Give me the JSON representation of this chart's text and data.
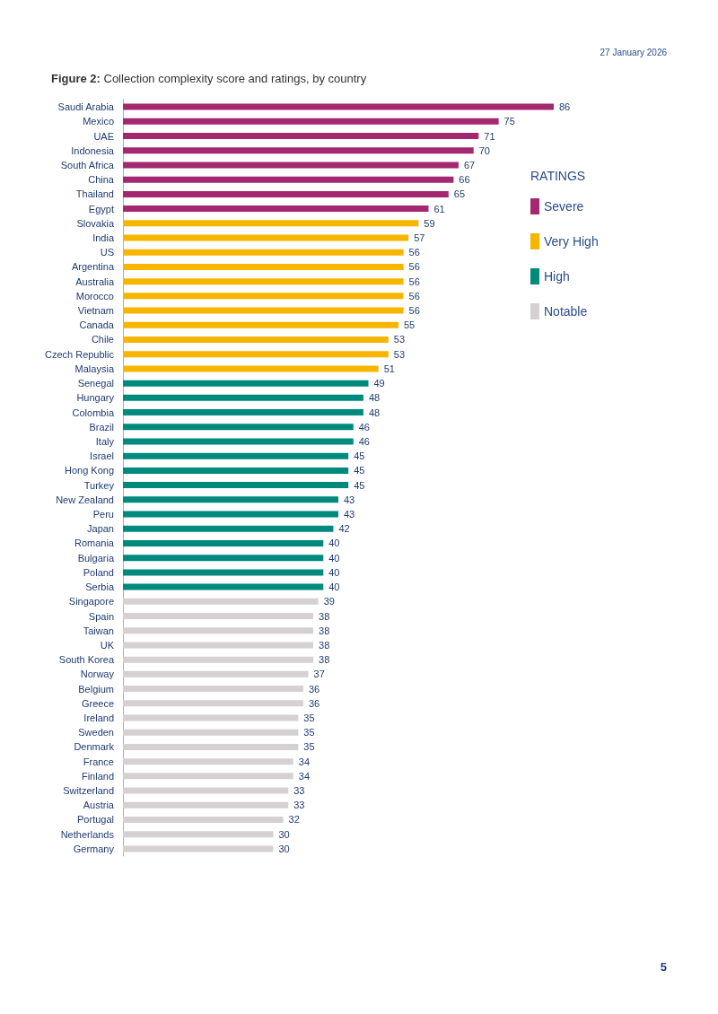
{
  "chart_data": {
    "type": "bar",
    "orientation": "horizontal",
    "title": "Figure 2: Collection complexity score and ratings, by country",
    "legend_title": "RATINGS",
    "legend": "right",
    "data_labels": true,
    "tick_labels": "y",
    "annotations": [
      "27 January 2026",
      "5"
    ],
    "categories": [
      "Saudi Arabia",
      "Mexico",
      "UAE",
      "Indonesia",
      "South Africa",
      "China",
      "Thailand",
      "Egypt",
      "Slovakia",
      "India",
      "US",
      "Argentina",
      "Australia",
      "Morocco",
      "Vietnam",
      "Canada",
      "Chile",
      "Czech Republic",
      "Malaysia",
      "Senegal",
      "Hungary",
      "Colombia",
      "Brazil",
      "Italy",
      "Israel",
      "Hong Kong",
      "Turkey",
      "New Zealand",
      "Peru",
      "Japan",
      "Romania",
      "Bulgaria",
      "Poland",
      "Serbia",
      "Singapore",
      "Spain",
      "Taiwan",
      "UK",
      "South Korea",
      "Norway",
      "Belgium",
      "Greece",
      "Ireland",
      "Sweden",
      "Denmark",
      "France",
      "Finland",
      "Switzerland",
      "Austria",
      "Portugal",
      "Netherlands",
      "Germany"
    ],
    "series": [
      {
        "name": "Severe",
        "color": "#a3286f",
        "values": [
          86,
          75,
          71,
          70,
          67,
          66,
          65,
          61,
          null,
          null,
          null,
          null,
          null,
          null,
          null,
          null,
          null,
          null,
          null,
          null,
          null,
          null,
          null,
          null,
          null,
          null,
          null,
          null,
          null,
          null,
          null,
          null,
          null,
          null,
          null,
          null,
          null,
          null,
          null,
          null,
          null,
          null,
          null,
          null,
          null,
          null,
          null,
          null,
          null,
          null,
          null,
          null
        ]
      },
      {
        "name": "Very High",
        "color": "#f7b500",
        "values": [
          null,
          null,
          null,
          null,
          null,
          null,
          null,
          null,
          59,
          57,
          56,
          56,
          56,
          56,
          56,
          55,
          53,
          53,
          51,
          null,
          null,
          null,
          null,
          null,
          null,
          null,
          null,
          null,
          null,
          null,
          null,
          null,
          null,
          null,
          null,
          null,
          null,
          null,
          null,
          null,
          null,
          null,
          null,
          null,
          null,
          null,
          null,
          null,
          null,
          null,
          null,
          null
        ]
      },
      {
        "name": "High",
        "color": "#008a7d",
        "values": [
          null,
          null,
          null,
          null,
          null,
          null,
          null,
          null,
          null,
          null,
          null,
          null,
          null,
          null,
          null,
          null,
          null,
          null,
          null,
          49,
          48,
          48,
          46,
          46,
          45,
          45,
          45,
          43,
          43,
          42,
          40,
          40,
          40,
          40,
          null,
          null,
          null,
          null,
          null,
          null,
          null,
          null,
          null,
          null,
          null,
          null,
          null,
          null,
          null,
          null,
          null,
          null
        ]
      },
      {
        "name": "Notable",
        "color": "#d5d1d2",
        "values": [
          null,
          null,
          null,
          null,
          null,
          null,
          null,
          null,
          null,
          null,
          null,
          null,
          null,
          null,
          null,
          null,
          null,
          null,
          null,
          null,
          null,
          null,
          null,
          null,
          null,
          null,
          null,
          null,
          null,
          null,
          null,
          null,
          null,
          null,
          39,
          38,
          38,
          38,
          38,
          37,
          36,
          36,
          35,
          35,
          35,
          34,
          34,
          33,
          33,
          32,
          30,
          30
        ]
      }
    ]
  }
}
